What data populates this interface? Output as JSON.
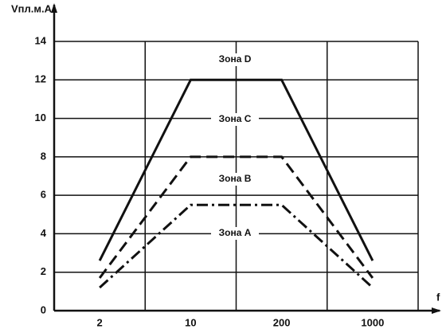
{
  "chart_data": {
    "type": "line",
    "y_label": "Vпл.м.А",
    "x_label": "f",
    "categories": [
      "2",
      "10",
      "200",
      "1000"
    ],
    "series": [
      {
        "color": "#111111",
        "line_style": "solid",
        "values": [
          2.6,
          12,
          12,
          2.6
        ]
      },
      {
        "color": "#111111",
        "line_style": "dashed",
        "values": [
          1.7,
          8,
          8,
          1.7
        ]
      },
      {
        "color": "#111111",
        "line_style": "dashdot",
        "values": [
          1.2,
          5.5,
          5.5,
          1.2
        ]
      }
    ],
    "ylim": [
      0,
      14
    ],
    "yticks": [
      0,
      2,
      4,
      6,
      8,
      10,
      12,
      14
    ],
    "grid": true,
    "annotations": [
      "Зона D",
      "Зона C",
      "Зона B",
      "Зона A"
    ]
  }
}
